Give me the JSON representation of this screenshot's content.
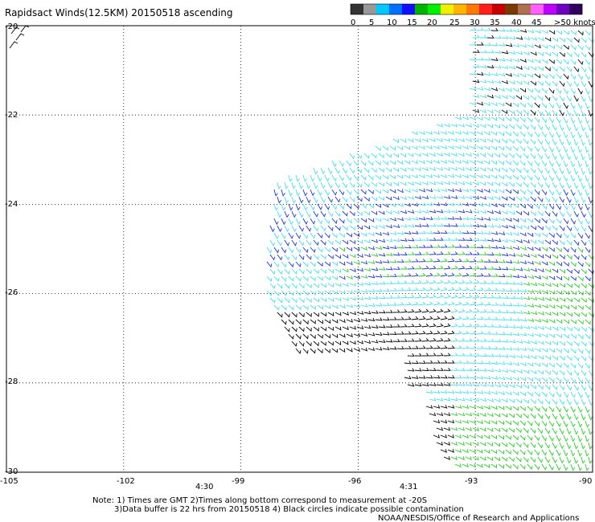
{
  "title": "Rapidsact Winds(12.5KM) 20150518 ascending",
  "legend": {
    "labels": [
      "0",
      "5",
      "10",
      "15",
      "20",
      "25",
      "30",
      "35",
      "40",
      "45",
      ">50 knots"
    ],
    "colors": [
      "#333333",
      "#999999",
      "#00c8ff",
      "#0070ff",
      "#1010ff",
      "#00b400",
      "#00f000",
      "#f0f000",
      "#ffb400",
      "#ff7800",
      "#ff1e1e",
      "#c80000",
      "#7a3a00",
      "#b07050",
      "#ff60ff",
      "#c000ff",
      "#7000c0",
      "#300060"
    ]
  },
  "map": {
    "lat_labels": [
      "-20",
      "-22",
      "-24",
      "-26",
      "-28",
      "-30"
    ],
    "lon_labels": [
      "-105",
      "-102",
      "-99",
      "-96",
      "-93",
      "-90"
    ],
    "time_labels": [
      "4:30",
      "4:31"
    ],
    "time_color": "#7a1a8a",
    "wind_colors": {
      "calm": "#000000",
      "light": "#40e0f0",
      "moderate": "#1a30e0",
      "strong": "#20d020"
    }
  },
  "notes": {
    "line1": "Note: 1) Times are GMT 2)Times along bottom correspond to measurement at -20S",
    "line2": "3)Data buffer is 22 hrs from 20150518 4) Black circles indicate possible contamination",
    "credit": "NOAA/NESDIS/Office of Research and Applications"
  }
}
